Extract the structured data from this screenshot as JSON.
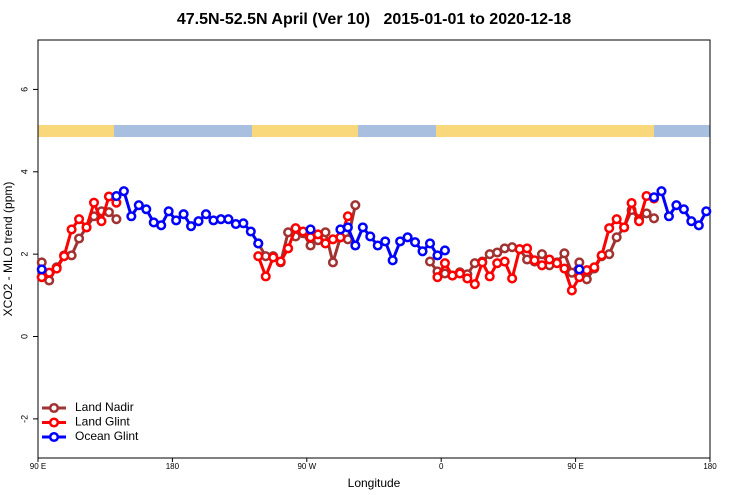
{
  "chart_data": {
    "type": "line",
    "title": "47.5N-52.5N April (Ver 10)   2015-01-01 to 2020-12-18",
    "x_label": "Longitude",
    "y_label": "XCO2 - MLO trend (ppm)",
    "x": [
      92.5,
      97.5,
      102.5,
      107.5,
      112.5,
      117.5,
      122.5,
      127.5,
      132.5,
      137.5,
      142.5,
      147.5,
      152.5,
      157.5,
      162.5,
      167.5,
      172.5,
      177.5,
      182.5,
      187.5,
      192.5,
      197.5,
      202.5,
      207.5,
      212.5,
      217.5,
      222.5,
      227.5,
      232.5,
      237.5,
      242.5,
      247.5,
      252.5,
      257.5,
      262.5,
      267.5,
      272.5,
      277.5,
      282.5,
      287.5,
      292.5,
      297.5,
      302.5,
      307.5,
      312.5,
      317.5,
      322.5,
      327.5,
      332.5,
      337.5,
      342.5,
      347.5,
      352.5,
      357.5,
      362.5,
      367.5,
      372.5,
      377.5,
      382.5,
      387.5,
      392.5,
      397.5,
      402.5,
      407.5,
      412.5,
      417.5,
      422.5,
      427.5,
      432.5,
      437.5,
      442.5,
      447.5,
      452.5,
      457.5,
      462.5,
      467.5,
      472.5,
      477.5,
      482.5,
      487.5,
      492.5,
      497.5,
      502.5,
      507.5,
      512.5,
      517.5,
      522.5,
      527.5,
      532.5,
      537.5
    ],
    "xlim": [
      90,
      540
    ],
    "xticks": [
      {
        "value": 90,
        "label": "90 E"
      },
      180,
      {
        "value": 270,
        "label": "90 W"
      },
      {
        "value": 360,
        "label": "0"
      },
      {
        "value": 450,
        "label": "90 E"
      },
      {
        "value": 540,
        "label": "180"
      }
    ],
    "ylim": [
      -2.95,
      7.2
    ],
    "yticks": [
      -2,
      0,
      2,
      4,
      6
    ],
    "legend": "bottomleft",
    "series": [
      {
        "name": "Land Nadir",
        "color": "#a03232",
        "values": [
          1.8,
          1.36,
          1.68,
          1.97,
          1.97,
          2.38,
          2.65,
          2.92,
          3.04,
          3.02,
          2.85,
          null,
          null,
          null,
          null,
          null,
          null,
          null,
          null,
          null,
          null,
          null,
          null,
          null,
          null,
          null,
          null,
          null,
          null,
          2.26,
          1.95,
          1.95,
          1.8,
          2.53,
          2.43,
          2.51,
          2.21,
          2.34,
          2.53,
          1.8,
          2.41,
          2.36,
          3.19,
          null,
          null,
          null,
          null,
          null,
          null,
          null,
          null,
          null,
          1.82,
          1.58,
          1.53,
          1.48,
          1.56,
          1.51,
          1.78,
          1.82,
          2.0,
          2.04,
          2.14,
          2.17,
          2.12,
          1.87,
          1.82,
          2.0,
          1.73,
          1.8,
          2.02,
          1.55,
          1.8,
          1.39,
          1.65,
          1.95,
          2.0,
          2.41,
          2.65,
          3.07,
          2.85,
          2.99,
          2.87,
          null,
          null,
          null,
          null,
          null,
          null,
          null
        ]
      },
      {
        "name": "Land Glint",
        "color": "#ff0000",
        "values": [
          1.44,
          1.55,
          1.65,
          1.95,
          2.6,
          2.85,
          2.65,
          3.25,
          2.8,
          3.4,
          3.25,
          null,
          null,
          null,
          null,
          null,
          null,
          null,
          null,
          null,
          null,
          null,
          null,
          null,
          null,
          null,
          null,
          null,
          null,
          1.95,
          1.46,
          1.92,
          1.82,
          2.14,
          2.63,
          2.55,
          2.41,
          2.48,
          2.26,
          2.36,
          2.41,
          2.92,
          null,
          null,
          null,
          null,
          null,
          null,
          null,
          null,
          null,
          null,
          null,
          1.44,
          1.78,
          1.48,
          1.53,
          1.41,
          1.27,
          1.8,
          1.46,
          1.78,
          1.82,
          1.41,
          2.12,
          2.14,
          1.85,
          1.73,
          1.87,
          1.78,
          1.65,
          1.12,
          1.44,
          1.61,
          1.68,
          1.97,
          2.63,
          2.85,
          2.65,
          3.24,
          2.8,
          3.41,
          3.35,
          null,
          null,
          null,
          null,
          null,
          null,
          null
        ]
      },
      {
        "name": "Ocean Glint",
        "color": "#0000ff",
        "values": [
          1.63,
          null,
          null,
          null,
          null,
          null,
          null,
          null,
          null,
          null,
          3.41,
          3.53,
          2.92,
          3.19,
          3.09,
          2.77,
          2.7,
          3.04,
          2.82,
          2.97,
          2.68,
          2.8,
          2.97,
          2.82,
          2.85,
          2.85,
          2.73,
          2.75,
          2.55,
          2.26,
          null,
          null,
          null,
          null,
          null,
          null,
          2.6,
          null,
          null,
          null,
          2.6,
          2.65,
          2.21,
          2.65,
          2.43,
          2.21,
          2.31,
          1.85,
          2.31,
          2.41,
          2.29,
          2.07,
          2.26,
          1.97,
          2.09,
          null,
          null,
          null,
          null,
          null,
          null,
          null,
          null,
          null,
          null,
          null,
          null,
          null,
          null,
          null,
          null,
          null,
          1.63,
          null,
          null,
          null,
          null,
          null,
          null,
          null,
          null,
          null,
          3.38,
          3.53,
          2.92,
          3.19,
          3.09,
          2.8,
          2.7,
          3.04
        ]
      }
    ]
  }
}
